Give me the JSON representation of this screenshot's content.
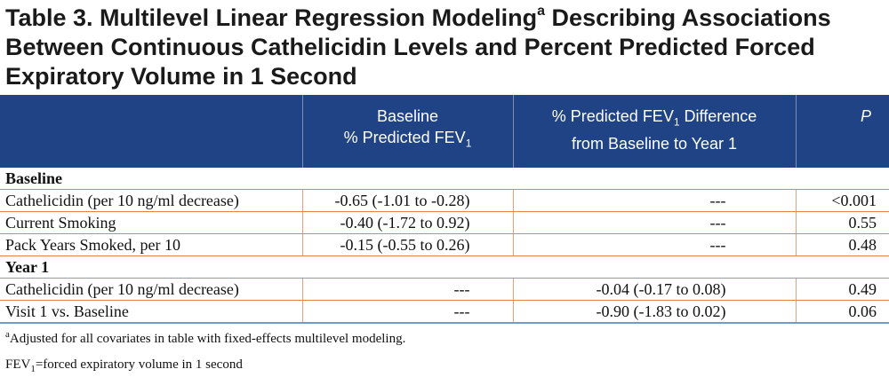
{
  "title": {
    "part1": "Table 3. Multilevel Linear Regression Modeling",
    "superscript": "a",
    "part2": " Describing Associations Between Continuous Cathelicidin Levels and Percent Predicted Forced Expiratory Volume in 1 Second"
  },
  "headers": {
    "col1": "",
    "col2_line1": "Baseline",
    "col2_line2_pre": "% Predicted FEV",
    "col2_line2_sub": "1",
    "col3_line1_pre": "% Predicted FEV",
    "col3_line1_sub": "1",
    "col3_line1_post": " Difference",
    "col3_line2": "from Baseline to Year 1",
    "col4": "P"
  },
  "sections": [
    {
      "label": "Baseline",
      "rows": [
        {
          "variable": "Cathelicidin (per 10 ng/ml decrease)",
          "baseline": "-0.65 (-1.01 to -0.28)",
          "difference": "---",
          "p": "<0.001"
        },
        {
          "variable": "Current Smoking",
          "baseline": "-0.40 (-1.72 to 0.92)",
          "difference": "---",
          "p": "0.55"
        },
        {
          "variable": "Pack Years Smoked, per 10",
          "baseline": "-0.15 (-0.55 to 0.26)",
          "difference": "---",
          "p": "0.48"
        }
      ]
    },
    {
      "label": "Year 1",
      "rows": [
        {
          "variable": "Cathelicidin (per 10 ng/ml decrease)",
          "baseline": "---",
          "difference": "-0.04 (-0.17 to 0.08)",
          "p": "0.49"
        },
        {
          "variable": "Visit 1 vs. Baseline",
          "baseline": "---",
          "difference": "-0.90 (-1.83 to 0.02)",
          "p": "0.06"
        }
      ]
    }
  ],
  "footnotes": {
    "note1_sup": "a",
    "note1_text": "Adjusted for all covariates in table with fixed-effects multilevel modeling.",
    "note2_pre": "FEV",
    "note2_sub": "1",
    "note2_text": "=forced expiratory volume in 1 second"
  },
  "colors": {
    "header_bg": "#1f4384",
    "row_border": "#e8834c",
    "bottom_border": "#6e9acd"
  }
}
